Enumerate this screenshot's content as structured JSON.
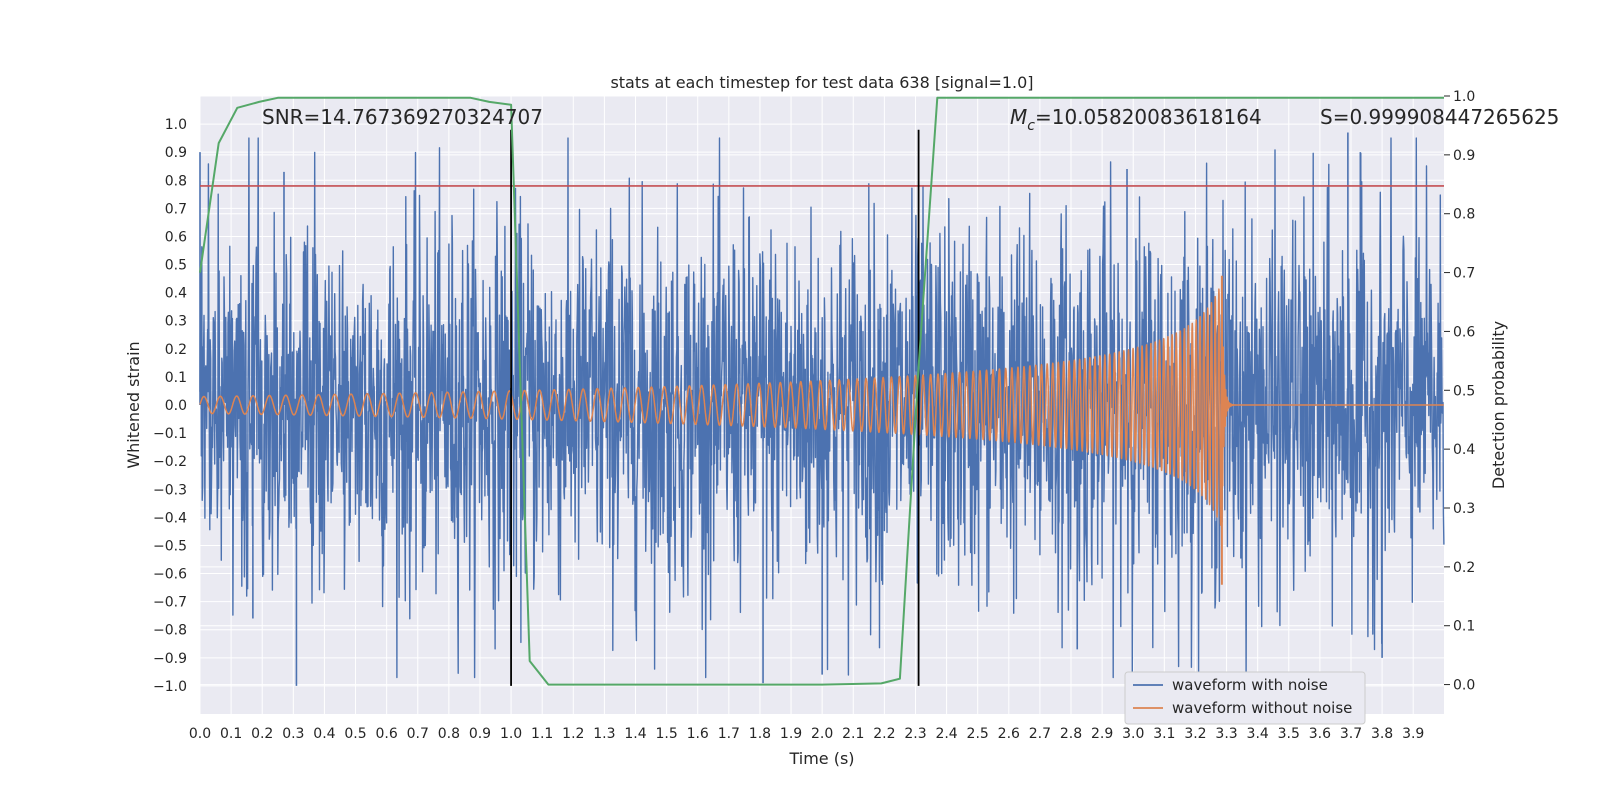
{
  "chart_data": {
    "type": "line",
    "title": "stats at each timestep for test data 638 [signal=1.0]",
    "xlabel": "Time (s)",
    "ylabel": "Whitened strain",
    "y2label": "Detection probability",
    "xlim": [
      0.0,
      3.999
    ],
    "ylim": [
      -1.1,
      1.1
    ],
    "y2lim": [
      -0.05,
      1.0
    ],
    "grid": true,
    "xticks": [
      0.0,
      0.1,
      0.2,
      0.3,
      0.4,
      0.5,
      0.6,
      0.7,
      0.8,
      0.9,
      1.0,
      1.1,
      1.2,
      1.3,
      1.4,
      1.5,
      1.6,
      1.7,
      1.8,
      1.9,
      2.0,
      2.1,
      2.2,
      2.3,
      2.4,
      2.5,
      2.6,
      2.7,
      2.8,
      2.9,
      3.0,
      3.1,
      3.2,
      3.3,
      3.4,
      3.5,
      3.6,
      3.7,
      3.8,
      3.9
    ],
    "xtick_labels": [
      "0.0",
      "0.1",
      "0.2",
      "0.3",
      "0.4",
      "0.5",
      "0.6",
      "0.7",
      "0.8",
      "0.9",
      "1.0",
      "1.1",
      "1.2",
      "1.3",
      "1.4",
      "1.5",
      "1.6",
      "1.7",
      "1.8",
      "1.9",
      "2.0",
      "2.1",
      "2.2",
      "2.3",
      "2.4",
      "2.5",
      "2.6",
      "2.7",
      "2.8",
      "2.9",
      "3.0",
      "3.1",
      "3.2",
      "3.3",
      "3.4",
      "3.5",
      "3.6",
      "3.7",
      "3.8",
      "3.9"
    ],
    "yticks": [
      1.0,
      0.9,
      0.8,
      0.7,
      0.6,
      0.5,
      0.4,
      0.3,
      0.2,
      0.1,
      0.0,
      -0.1,
      -0.2,
      -0.3,
      -0.4,
      -0.5,
      -0.6,
      -0.7,
      -0.8,
      -0.9,
      -1.0
    ],
    "ytick_labels": [
      "1.0",
      "0.9",
      "0.8",
      "0.7",
      "0.6",
      "0.5",
      "0.4",
      "0.3",
      "0.2",
      "0.1",
      "0.0",
      "−0.1",
      "−0.2",
      "−0.3",
      "−0.4",
      "−0.5",
      "−0.6",
      "−0.7",
      "−0.8",
      "−0.9",
      "−1.0"
    ],
    "y2ticks": [
      1.0,
      0.9,
      0.8,
      0.7,
      0.6,
      0.5,
      0.4,
      0.3,
      0.2,
      0.1,
      0.0
    ],
    "y2tick_labels": [
      "1.0",
      "0.9",
      "0.8",
      "0.7",
      "0.6",
      "0.5",
      "0.4",
      "0.3",
      "0.2",
      "0.1",
      "0.0"
    ],
    "annotations": {
      "snr": "SNR=14.767369270324707",
      "mc_symbol": "M",
      "mc_sub": "c",
      "mc_value": "=10.05820083618164",
      "s": "S=0.999908447265625"
    },
    "threshold_y": 0.78,
    "vlines_x": [
      1.0,
      2.31
    ],
    "legend": {
      "location": "lower-right",
      "entries": [
        "waveform with noise",
        "waveform without noise"
      ]
    },
    "colors": {
      "noisy": "#4c72b0",
      "clean": "#dd8452",
      "prob": "#55a868",
      "threshold": "#c44e52",
      "vline": "#000000",
      "plot_bg": "#eaeaf2",
      "grid": "#ffffff"
    },
    "series": [
      {
        "name": "waveform with noise",
        "kind": "noise",
        "sample_rate": 700,
        "std": 0.33,
        "seed": 638,
        "spikes": [
          [
            0.0,
            0.9
          ],
          [
            0.31,
            -1.0
          ],
          [
            0.27,
            0.83
          ],
          [
            0.17,
            -0.76
          ],
          [
            1.81,
            -0.99
          ],
          [
            2.0,
            -0.96
          ],
          [
            3.69,
            0.97
          ],
          [
            3.73,
            0.9
          ],
          [
            3.8,
            -0.9
          ],
          [
            2.98,
            0.84
          ],
          [
            2.82,
            -0.87
          ]
        ]
      },
      {
        "name": "waveform without noise",
        "kind": "chirp",
        "merger_time": 3.285,
        "amplitude_start": 0.03,
        "amplitude_peak": 0.44,
        "frequency_start": 19.0,
        "frequency_end": 85.0
      },
      {
        "name": "detection probability",
        "axis": "y2",
        "x": [
          0.0,
          0.06,
          0.12,
          0.19,
          0.25,
          0.31,
          0.37,
          0.43,
          0.5,
          0.56,
          0.62,
          0.68,
          0.74,
          0.8,
          0.87,
          0.93,
          1.0,
          1.06,
          1.12,
          1.18,
          1.25,
          1.5,
          1.75,
          2.0,
          2.19,
          2.25,
          2.31,
          2.37,
          2.5,
          2.75,
          3.0,
          3.25,
          3.5,
          3.75,
          3.999
        ],
        "values": [
          0.7,
          0.92,
          0.98,
          0.99,
          0.997,
          0.997,
          0.997,
          0.997,
          0.997,
          0.997,
          0.997,
          0.997,
          0.997,
          0.997,
          0.997,
          0.99,
          0.985,
          0.04,
          0.0,
          0.0,
          0.0,
          0.0,
          0.0,
          0.0,
          0.002,
          0.01,
          0.54,
          0.997,
          0.997,
          0.997,
          0.997,
          0.997,
          0.997,
          0.997,
          0.997
        ]
      }
    ]
  }
}
